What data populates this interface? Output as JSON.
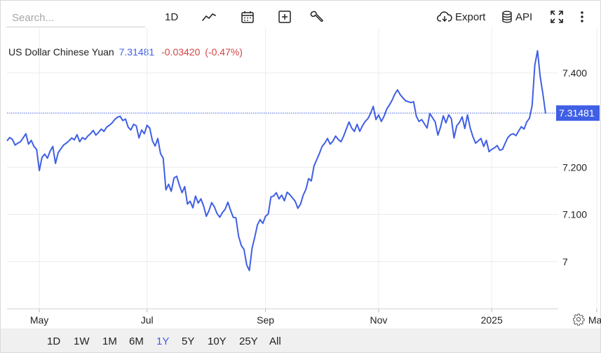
{
  "toolbar": {
    "search_placeholder": "Search...",
    "interval_label": "1D",
    "export_label": "Export",
    "api_label": "API",
    "icons": [
      "line-chart-icon",
      "calendar-icon",
      "plus-box-icon",
      "wrench-icon",
      "cloud-download-icon",
      "database-icon",
      "fullscreen-icon",
      "more-vert-icon"
    ]
  },
  "legend": {
    "name": "US Dollar Chinese Yuan",
    "price": "7.31481",
    "change": "-0.03420",
    "change_pct": "(-0.47%)"
  },
  "colors": {
    "line": "#3f5fe5",
    "down": "#d64545",
    "grid": "#ececec",
    "footer_bg": "#f0f0f0"
  },
  "ranges": [
    "1D",
    "1W",
    "1M",
    "6M",
    "1Y",
    "5Y",
    "10Y",
    "25Y",
    "All"
  ],
  "active_range": "1Y",
  "chart_data": {
    "type": "line",
    "title": "",
    "xlabel": "",
    "ylabel": "",
    "series_name": "US Dollar Chinese Yuan",
    "x_tick_labels": [
      "May",
      "Jul",
      "Sep",
      "Nov",
      "2025",
      "Mar"
    ],
    "x_tick_index": [
      12,
      52,
      96,
      138,
      180,
      219
    ],
    "y_ticks": [
      7,
      7.1,
      7.2,
      7.4
    ],
    "y_tick_labels": [
      "7",
      "7.100",
      "7.200",
      "7.400"
    ],
    "ylim": [
      6.9,
      7.495
    ],
    "last_value": 7.31481,
    "last_value_label": "7.31481",
    "grid": true,
    "values": [
      7.256,
      7.263,
      7.259,
      7.247,
      7.251,
      7.254,
      7.262,
      7.271,
      7.249,
      7.257,
      7.244,
      7.238,
      7.193,
      7.221,
      7.228,
      7.219,
      7.234,
      7.244,
      7.208,
      7.231,
      7.239,
      7.247,
      7.251,
      7.256,
      7.262,
      7.258,
      7.269,
      7.254,
      7.263,
      7.259,
      7.266,
      7.271,
      7.278,
      7.268,
      7.274,
      7.281,
      7.276,
      7.285,
      7.289,
      7.294,
      7.301,
      7.306,
      7.308,
      7.299,
      7.302,
      7.285,
      7.279,
      7.291,
      7.288,
      7.262,
      7.279,
      7.271,
      7.289,
      7.283,
      7.256,
      7.245,
      7.261,
      7.229,
      7.219,
      7.152,
      7.164,
      7.149,
      7.177,
      7.181,
      7.162,
      7.146,
      7.159,
      7.122,
      7.128,
      7.114,
      7.139,
      7.124,
      7.133,
      7.118,
      7.096,
      7.108,
      7.125,
      7.116,
      7.102,
      7.094,
      7.104,
      7.111,
      7.126,
      7.109,
      7.094,
      7.093,
      7.054,
      7.034,
      7.026,
      6.993,
      6.981,
      7.028,
      7.052,
      7.078,
      7.089,
      7.081,
      7.096,
      7.101,
      7.137,
      7.139,
      7.146,
      7.133,
      7.141,
      7.129,
      7.147,
      7.142,
      7.135,
      7.128,
      7.113,
      7.122,
      7.141,
      7.153,
      7.176,
      7.171,
      7.203,
      7.216,
      7.229,
      7.244,
      7.251,
      7.261,
      7.249,
      7.255,
      7.266,
      7.259,
      7.254,
      7.266,
      7.281,
      7.296,
      7.283,
      7.276,
      7.291,
      7.276,
      7.288,
      7.297,
      7.303,
      7.314,
      7.329,
      7.301,
      7.311,
      7.297,
      7.308,
      7.323,
      7.332,
      7.342,
      7.355,
      7.364,
      7.354,
      7.347,
      7.341,
      7.339,
      7.337,
      7.339,
      7.308,
      7.297,
      7.301,
      7.292,
      7.283,
      7.314,
      7.305,
      7.296,
      7.268,
      7.285,
      7.309,
      7.294,
      7.311,
      7.303,
      7.262,
      7.288,
      7.295,
      7.307,
      7.282,
      7.311,
      7.283,
      7.265,
      7.251,
      7.256,
      7.261,
      7.244,
      7.257,
      7.233,
      7.238,
      7.241,
      7.246,
      7.236,
      7.238,
      7.251,
      7.263,
      7.269,
      7.271,
      7.267,
      7.277,
      7.286,
      7.281,
      7.296,
      7.304,
      7.331,
      7.416,
      7.447,
      7.392,
      7.355,
      7.314
    ]
  }
}
